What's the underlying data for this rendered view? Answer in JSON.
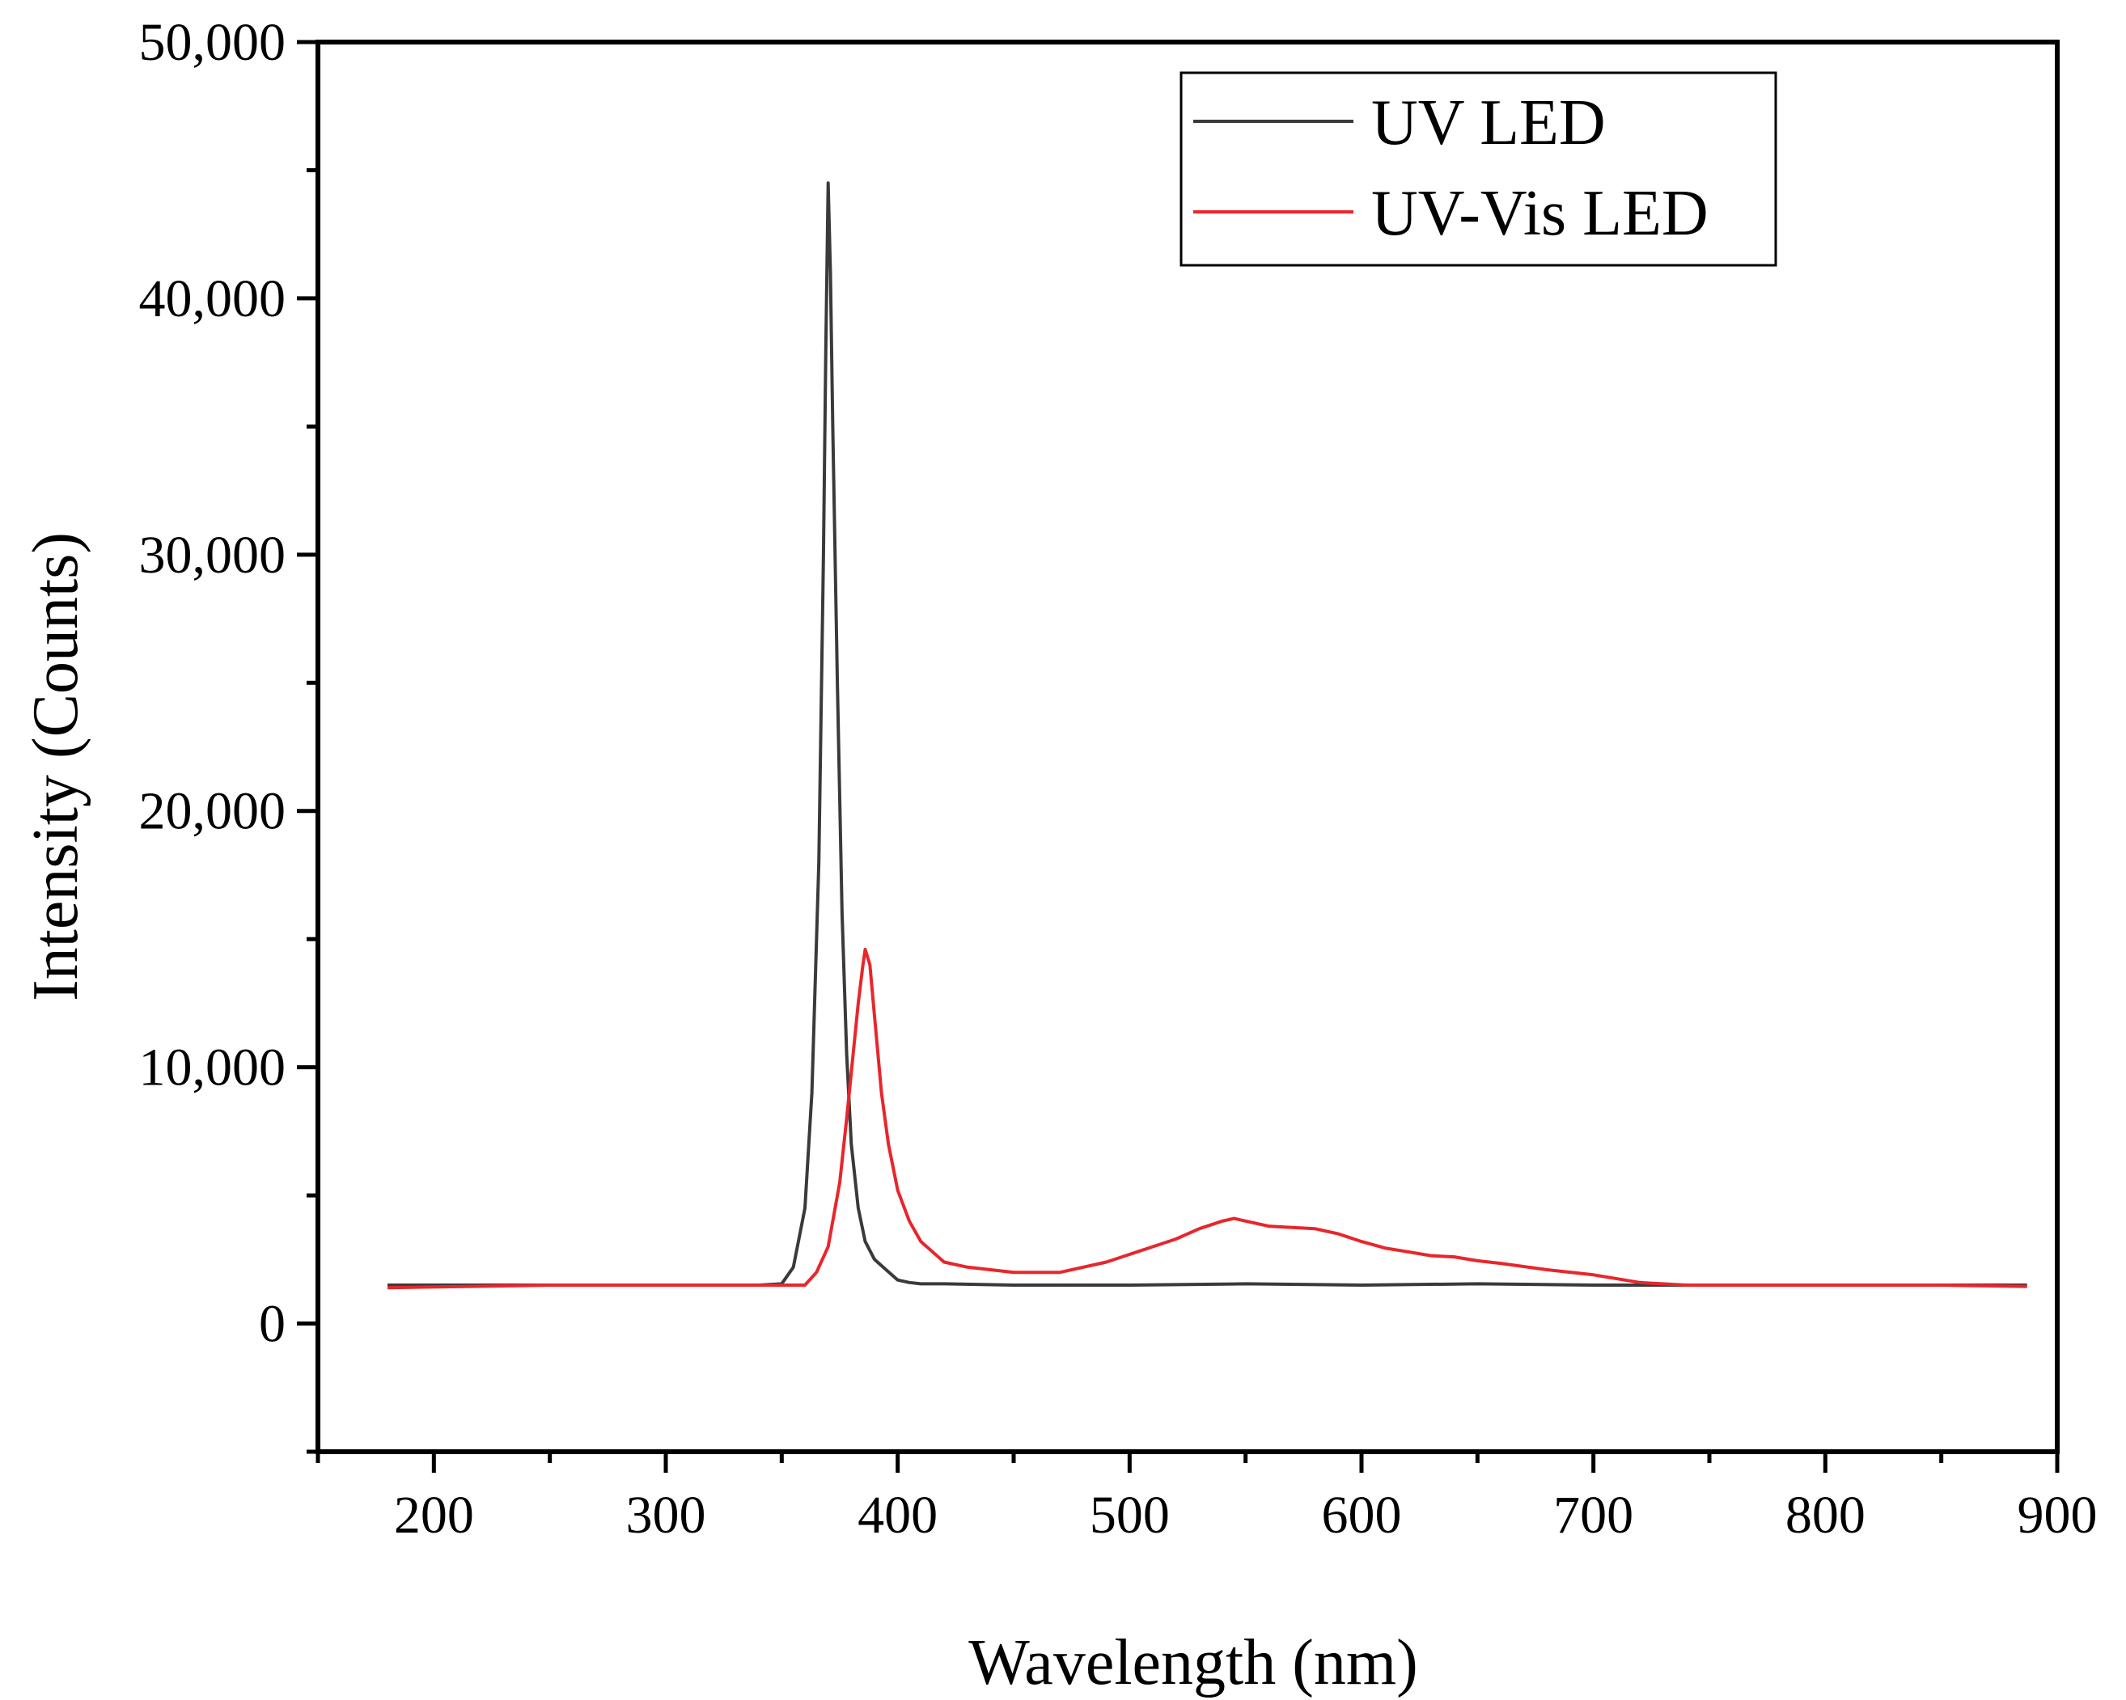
{
  "chart_data": {
    "type": "line",
    "title": "",
    "xlabel": "Wavelength (nm)",
    "ylabel": "Intensity (Counts)",
    "xlim": [
      150,
      900
    ],
    "ylim": [
      -5000,
      50000
    ],
    "x_ticks": [
      200,
      300,
      400,
      500,
      600,
      700,
      800,
      900
    ],
    "x_tick_labels": [
      "200",
      "300",
      "400",
      "500",
      "600",
      "700",
      "800",
      "900"
    ],
    "y_ticks": [
      0,
      10000,
      20000,
      30000,
      40000,
      50000
    ],
    "y_tick_labels": [
      "0",
      "10,000",
      "20,000",
      "30,000",
      "40,000",
      "50,000"
    ],
    "grid": false,
    "legend_position": "top-right",
    "series": [
      {
        "name": "UV LED",
        "color": "#3a3a3a",
        "x": [
          180,
          250,
          300,
          340,
          350,
          355,
          360,
          363,
          366,
          368,
          369,
          370,
          371,
          372,
          374,
          376,
          378,
          380,
          383,
          386,
          390,
          395,
          400,
          405,
          410,
          420,
          450,
          500,
          550,
          600,
          650,
          700,
          750,
          800,
          850,
          887
        ],
        "values": [
          1500,
          1500,
          1500,
          1500,
          1550,
          2200,
          4500,
          9000,
          18000,
          30000,
          38000,
          44500,
          41000,
          35000,
          25000,
          16000,
          10500,
          7000,
          4500,
          3200,
          2500,
          2100,
          1700,
          1600,
          1550,
          1550,
          1500,
          1500,
          1550,
          1500,
          1550,
          1500,
          1500,
          1500,
          1500,
          1500
        ]
      },
      {
        "name": "UV-Vis LED",
        "color": "#e8262b",
        "x": [
          180,
          250,
          300,
          350,
          360,
          365,
          370,
          375,
          378,
          380,
          383,
          385,
          386,
          388,
          390,
          393,
          396,
          400,
          405,
          410,
          420,
          430,
          450,
          470,
          490,
          500,
          510,
          520,
          530,
          540,
          545,
          550,
          560,
          570,
          580,
          590,
          600,
          610,
          620,
          630,
          640,
          650,
          660,
          680,
          700,
          720,
          740,
          760,
          800,
          850,
          887
        ],
        "values": [
          1400,
          1500,
          1500,
          1500,
          1500,
          2000,
          3000,
          5500,
          8000,
          9800,
          12500,
          14000,
          14600,
          14000,
          12000,
          9000,
          7000,
          5200,
          4000,
          3200,
          2400,
          2200,
          2000,
          2000,
          2400,
          2700,
          3000,
          3300,
          3700,
          4000,
          4100,
          4000,
          3800,
          3750,
          3700,
          3500,
          3200,
          2950,
          2800,
          2650,
          2600,
          2450,
          2350,
          2100,
          1900,
          1600,
          1500,
          1500,
          1500,
          1500,
          1450
        ]
      }
    ]
  }
}
